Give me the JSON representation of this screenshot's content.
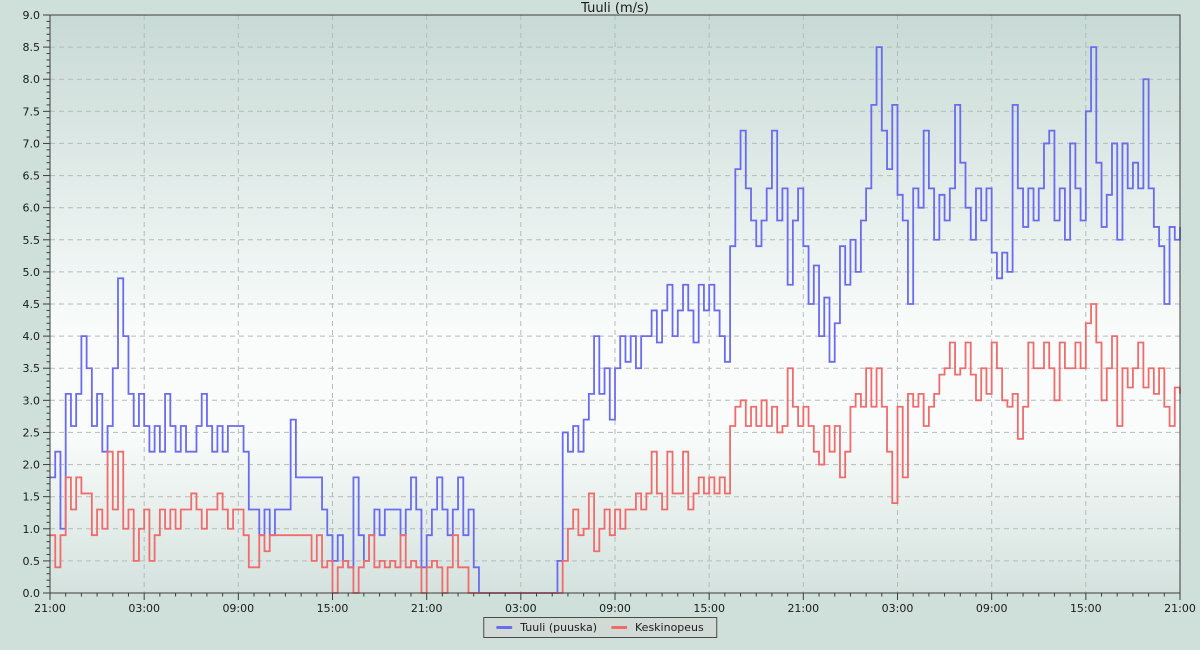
{
  "title": "Tuuli (m/s)",
  "legend": {
    "items": [
      {
        "label": "Tuuli (puuska)",
        "color": "#6b6bed"
      },
      {
        "label": "Keskinopeus",
        "color": "#f06c6c"
      }
    ]
  },
  "colors": {
    "page_background": "#cfdfda",
    "plot_gradient_top": "#c8dad5",
    "plot_gradient_middle": "#f9fcfb",
    "plot_gradient_bottom": "#d4e2de",
    "grid": "#b4bcba",
    "axis": "#3c3c3c",
    "text": "#1a1a1a",
    "series_gust": "#6b6bed",
    "series_avg": "#f06c6c"
  },
  "chart_data": {
    "type": "line",
    "step": true,
    "title": "Tuuli (m/s)",
    "xlabel": "",
    "ylabel": "",
    "ylim": [
      0,
      9
    ],
    "y_major_step": 0.5,
    "y_minor_step": 0.1,
    "y_tick_labels": [
      "0.0",
      "0.5",
      "1.0",
      "1.5",
      "2.0",
      "2.5",
      "3.0",
      "3.5",
      "4.0",
      "4.5",
      "5.0",
      "5.5",
      "6.0",
      "6.5",
      "7.0",
      "7.5",
      "8.0",
      "8.5",
      "9.0"
    ],
    "x_range_hours": [
      0,
      72
    ],
    "x_major_tick_hours": 6,
    "x_minor_tick_hours": 1,
    "x_tick_labels": [
      "21:00",
      "03:00",
      "09:00",
      "15:00",
      "21:00",
      "03:00",
      "09:00",
      "15:00",
      "21:00",
      "03:00",
      "09:00",
      "15:00",
      "21:00"
    ],
    "sample_interval_minutes": 20,
    "grid": true,
    "legend_position": "bottom",
    "series": [
      {
        "name": "Tuuli (puuska)",
        "color": "#6b6bed",
        "values": [
          1.8,
          2.2,
          1.0,
          3.1,
          2.6,
          3.1,
          4.0,
          3.5,
          2.6,
          3.1,
          2.2,
          2.6,
          3.5,
          4.9,
          4.0,
          3.1,
          2.6,
          3.1,
          2.6,
          2.2,
          2.6,
          2.2,
          3.1,
          2.6,
          2.2,
          2.6,
          2.2,
          2.2,
          2.6,
          3.1,
          2.6,
          2.2,
          2.6,
          2.2,
          2.6,
          2.6,
          2.6,
          2.2,
          1.3,
          1.3,
          0.9,
          1.3,
          0.9,
          1.3,
          1.3,
          1.3,
          2.7,
          1.8,
          1.8,
          1.8,
          1.8,
          1.8,
          1.3,
          0.9,
          0.5,
          0.9,
          0.5,
          0.4,
          1.8,
          0.9,
          0.5,
          0.9,
          1.3,
          0.9,
          1.3,
          1.3,
          1.3,
          0.9,
          1.3,
          1.8,
          1.3,
          0.4,
          0.9,
          1.3,
          1.8,
          1.3,
          0.9,
          1.3,
          1.8,
          0.9,
          1.3,
          0.4,
          0.0,
          0.0,
          0.0,
          0.0,
          0.0,
          0.0,
          0.0,
          0.0,
          0.0,
          0.0,
          0.0,
          0.0,
          0.0,
          0.0,
          0.0,
          0.5,
          2.5,
          2.2,
          2.6,
          2.2,
          2.7,
          3.1,
          4.0,
          3.1,
          3.5,
          2.7,
          3.5,
          4.0,
          3.6,
          4.0,
          3.5,
          4.0,
          4.0,
          4.4,
          3.9,
          4.4,
          4.8,
          4.0,
          4.4,
          4.8,
          4.4,
          3.9,
          4.8,
          4.4,
          4.8,
          4.4,
          4.0,
          3.6,
          5.4,
          6.6,
          7.2,
          6.3,
          5.8,
          5.4,
          5.8,
          6.3,
          7.2,
          5.8,
          6.3,
          4.8,
          5.8,
          6.3,
          5.4,
          4.5,
          5.1,
          4.0,
          4.6,
          3.6,
          4.2,
          5.4,
          4.8,
          5.5,
          5.0,
          5.8,
          6.3,
          7.6,
          8.5,
          7.2,
          6.6,
          7.6,
          6.2,
          5.8,
          4.5,
          6.3,
          6.0,
          7.2,
          6.3,
          5.5,
          6.2,
          5.8,
          6.3,
          7.6,
          6.7,
          6.0,
          5.5,
          6.3,
          5.8,
          6.3,
          5.3,
          4.9,
          5.3,
          5.0,
          7.6,
          6.3,
          5.7,
          6.3,
          5.8,
          6.3,
          7.0,
          7.2,
          5.8,
          6.3,
          5.5,
          7.0,
          6.3,
          5.8,
          7.5,
          8.5,
          6.7,
          5.7,
          6.2,
          7.0,
          5.5,
          7.0,
          6.3,
          6.7,
          6.3,
          8.0,
          6.3,
          5.7,
          5.4,
          4.5,
          5.7,
          5.5,
          5.7
        ]
      },
      {
        "name": "Keskinopeus",
        "color": "#f06c6c",
        "values": [
          0.9,
          0.4,
          0.9,
          1.8,
          1.3,
          1.8,
          1.55,
          1.55,
          0.9,
          1.3,
          1.0,
          2.2,
          1.3,
          2.2,
          1.0,
          1.3,
          0.5,
          1.0,
          1.3,
          0.5,
          0.9,
          1.3,
          1.0,
          1.3,
          1.0,
          1.3,
          1.3,
          1.55,
          1.3,
          1.0,
          1.3,
          1.3,
          1.55,
          1.3,
          1.0,
          1.3,
          1.3,
          0.9,
          0.4,
          0.4,
          0.9,
          0.65,
          0.9,
          0.9,
          0.9,
          0.9,
          0.9,
          0.9,
          0.9,
          0.9,
          0.5,
          0.9,
          0.4,
          0.5,
          0.0,
          0.4,
          0.5,
          0.4,
          0.0,
          0.4,
          0.5,
          0.9,
          0.4,
          0.5,
          0.4,
          0.5,
          0.4,
          0.9,
          0.4,
          0.5,
          0.4,
          0.0,
          0.4,
          0.5,
          0.4,
          0.0,
          0.4,
          0.9,
          0.4,
          0.4,
          0.0,
          0.0,
          0.0,
          0.0,
          0.0,
          0.0,
          0.0,
          0.0,
          0.0,
          0.0,
          0.0,
          0.0,
          0.0,
          0.0,
          0.0,
          0.0,
          0.0,
          0.0,
          0.5,
          1.0,
          1.3,
          0.9,
          1.0,
          1.55,
          0.65,
          1.0,
          1.3,
          0.9,
          1.3,
          1.0,
          1.3,
          1.3,
          1.55,
          1.3,
          1.55,
          2.2,
          1.55,
          1.3,
          2.2,
          1.55,
          1.55,
          2.2,
          1.3,
          1.55,
          1.8,
          1.55,
          1.8,
          1.55,
          1.8,
          1.55,
          2.6,
          2.9,
          3.0,
          2.6,
          2.9,
          2.6,
          3.0,
          2.6,
          2.9,
          2.5,
          2.6,
          3.5,
          2.9,
          2.6,
          2.9,
          2.6,
          2.2,
          2.0,
          2.6,
          2.2,
          2.6,
          1.8,
          2.2,
          2.9,
          3.1,
          2.9,
          3.5,
          2.9,
          3.5,
          2.9,
          2.2,
          1.4,
          2.9,
          1.8,
          3.1,
          2.9,
          3.1,
          2.6,
          2.9,
          3.1,
          3.4,
          3.5,
          3.9,
          3.4,
          3.5,
          3.9,
          3.4,
          3.0,
          3.5,
          3.1,
          3.9,
          3.5,
          3.0,
          2.9,
          3.1,
          2.4,
          2.9,
          3.9,
          3.5,
          3.5,
          3.9,
          3.5,
          3.0,
          3.9,
          3.5,
          3.5,
          3.9,
          3.5,
          4.2,
          4.5,
          3.9,
          3.0,
          3.5,
          4.0,
          2.6,
          3.5,
          3.2,
          3.5,
          3.9,
          3.2,
          3.5,
          3.1,
          3.5,
          2.9,
          2.6,
          3.2,
          3.1
        ]
      }
    ]
  }
}
